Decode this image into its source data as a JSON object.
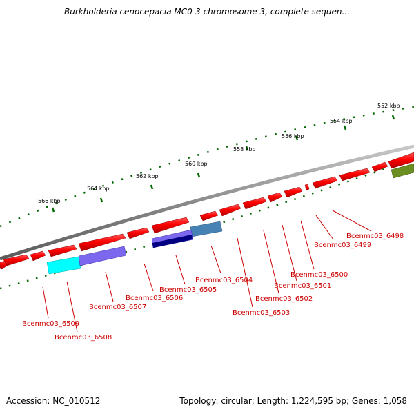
{
  "title": "Burkholderia cenocepacia MC0-3 chromosome 3, complete sequen...",
  "accession": "Accession: NC_010512",
  "topology": "Topology: circular; Length: 1,224,595 bp; Genes: 1,058",
  "scale_labels": [
    "552 kbp",
    "554 kbp",
    "556 kbp",
    "558 kbp",
    "560 kbp",
    "562 kbp",
    "564 kbp",
    "566 kbp"
  ],
  "gene_labels": [
    "Bcenmc03_6498",
    "Bcenmc03_6499",
    "Bcenmc03_6500",
    "Bcenmc03_6501",
    "Bcenmc03_6502",
    "Bcenmc03_6503",
    "Bcenmc03_6504",
    "Bcenmc03_6505",
    "Bcenmc03_6506",
    "Bcenmc03_6507",
    "Bcenmc03_6508",
    "Bcenmc03_6509"
  ],
  "colors": {
    "forward_cds": "#ff0000",
    "backbone": "#808080",
    "scale_ticks": "#006600",
    "labels": "#cc0000",
    "cyan_feature": "#00ffff",
    "purple_feature": "#7b68ee",
    "navy_feature": "#000080",
    "steel_feature": "#4682b4",
    "olive_feature": "#6b8e23"
  }
}
